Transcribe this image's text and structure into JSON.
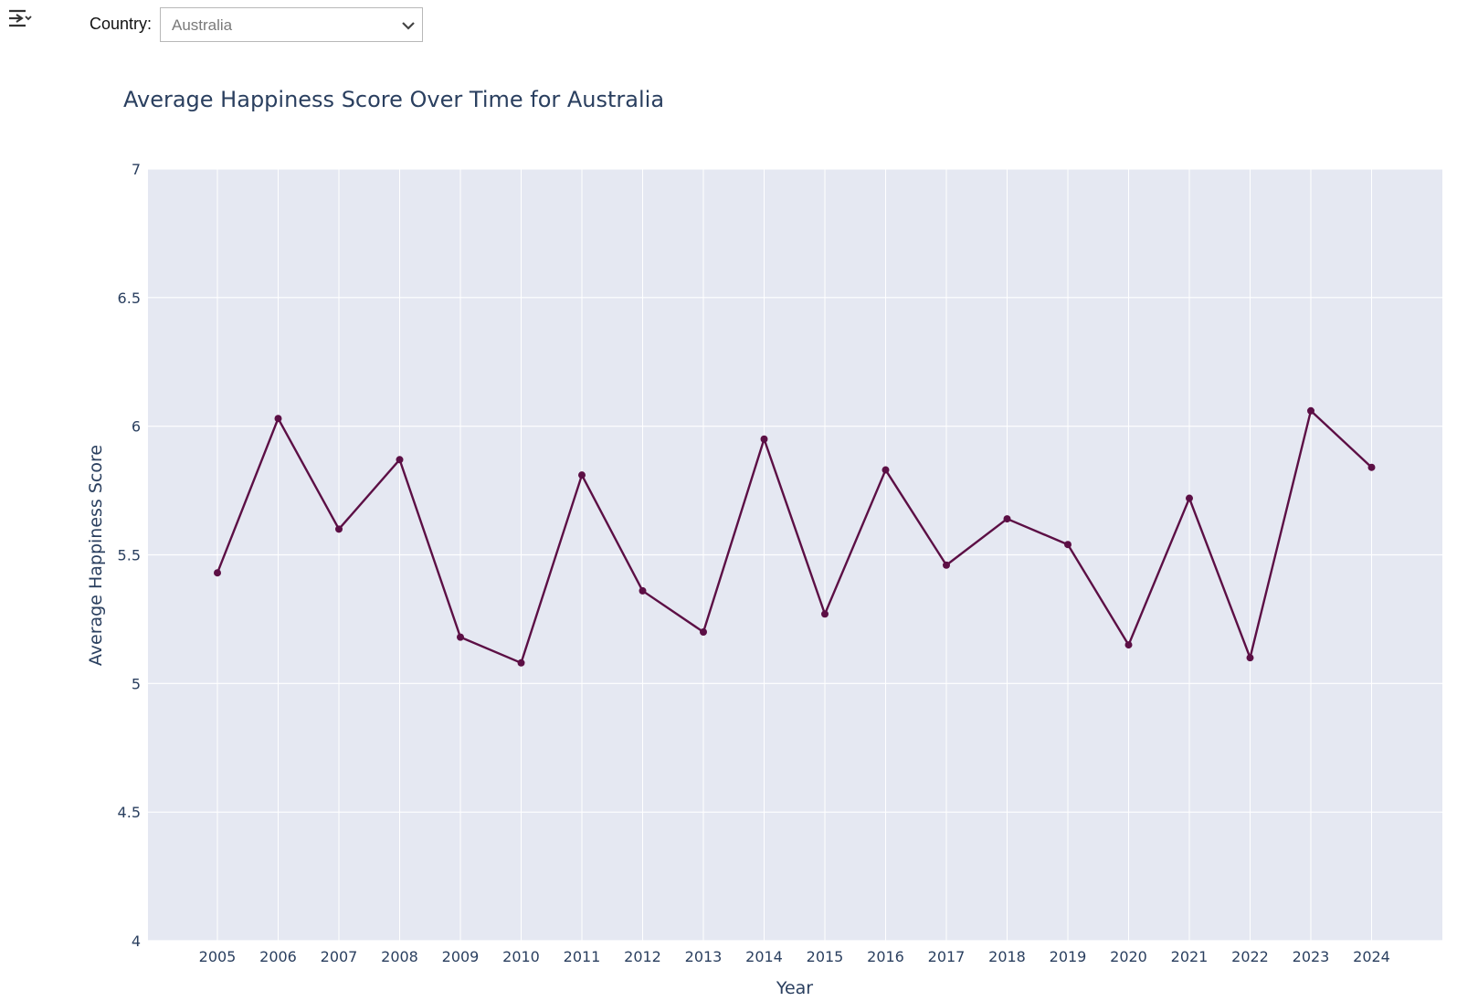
{
  "toolbar": {
    "menu_icon": "collapse-menu-icon",
    "country_label": "Country:",
    "country_selected": "Australia",
    "dropdown_icon": "chevron-down-icon"
  },
  "colors": {
    "plot_bg": "#e5e8f2",
    "grid": "#ffffff",
    "line": "#5c0f45",
    "text": "#2a3f5f"
  },
  "chart_data": {
    "type": "line",
    "title": "Average Happiness Score Over Time for Australia",
    "xlabel": "Year",
    "ylabel": "Average Happiness Score",
    "ylim": [
      4,
      7
    ],
    "yticks": [
      4,
      4.5,
      5,
      5.5,
      6,
      6.5,
      7
    ],
    "grid": true,
    "markers": true,
    "x": [
      2005,
      2006,
      2007,
      2008,
      2009,
      2010,
      2011,
      2012,
      2013,
      2014,
      2015,
      2016,
      2017,
      2018,
      2019,
      2020,
      2021,
      2022,
      2023,
      2024
    ],
    "series": [
      {
        "values": [
          5.43,
          6.03,
          5.6,
          5.87,
          5.18,
          5.08,
          5.81,
          5.36,
          5.2,
          5.95,
          5.27,
          5.83,
          5.46,
          5.64,
          5.54,
          5.15,
          5.72,
          5.1,
          6.06,
          5.84
        ]
      }
    ]
  }
}
